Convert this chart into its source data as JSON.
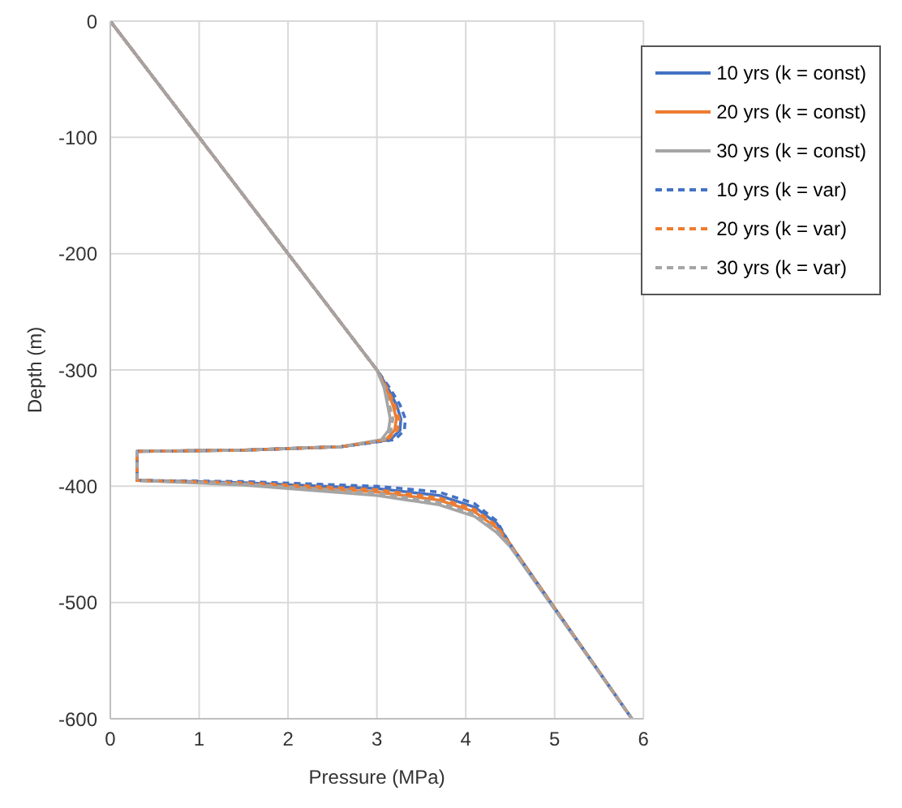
{
  "chart_data": {
    "type": "line",
    "xlabel": "Pressure (MPa)",
    "ylabel": "Depth (m)",
    "xlim": [
      0,
      6
    ],
    "xticks": [
      0,
      1,
      2,
      3,
      4,
      5,
      6
    ],
    "ylim": [
      -600,
      0
    ],
    "yticks": [
      -600,
      -500,
      -400,
      -300,
      -200,
      -100,
      0
    ],
    "grid": true,
    "legend": "top right",
    "marker": "none",
    "series": [
      {
        "name": "10 yrs (k = const)",
        "color": "#4472c4",
        "line_style": "solid",
        "x": [
          0,
          3.0,
          3.12,
          3.22,
          3.27,
          3.26,
          3.15,
          2.6,
          1.5,
          0.3,
          0.3,
          1.5,
          3.0,
          3.7,
          4.1,
          4.35,
          4.5,
          5.87
        ],
        "values": [
          0,
          -300,
          -315,
          -330,
          -342,
          -352,
          -360,
          -366,
          -369,
          -370,
          -395,
          -397,
          -402,
          -408,
          -418,
          -432,
          -450,
          -600
        ]
      },
      {
        "name": "20 yrs (k = const)",
        "color": "#ed7d31",
        "line_style": "solid",
        "x": [
          0,
          3.0,
          3.1,
          3.18,
          3.22,
          3.2,
          3.1,
          2.6,
          1.5,
          0.3,
          0.3,
          1.5,
          3.0,
          3.7,
          4.1,
          4.35,
          4.5,
          5.87
        ],
        "values": [
          0,
          -300,
          -315,
          -330,
          -342,
          -352,
          -360,
          -366,
          -369,
          -370,
          -395,
          -398,
          -405,
          -412,
          -422,
          -436,
          -450,
          -600
        ]
      },
      {
        "name": "30 yrs (k = const)",
        "color": "#a5a5a5",
        "line_style": "solid",
        "x": [
          0,
          3.0,
          3.08,
          3.12,
          3.15,
          3.13,
          3.05,
          2.6,
          1.5,
          0.3,
          0.3,
          1.5,
          3.0,
          3.7,
          4.1,
          4.35,
          4.5,
          5.87
        ],
        "values": [
          0,
          -300,
          -315,
          -330,
          -342,
          -352,
          -360,
          -366,
          -369,
          -370,
          -395,
          -399,
          -408,
          -416,
          -426,
          -440,
          -452,
          -600
        ]
      },
      {
        "name": "10 yrs (k = var)",
        "color": "#4472c4",
        "line_style": "dashed",
        "x": [
          0,
          3.0,
          3.14,
          3.26,
          3.32,
          3.31,
          3.2,
          2.6,
          1.5,
          0.3,
          0.3,
          1.5,
          3.0,
          3.7,
          4.1,
          4.35,
          4.5,
          5.87
        ],
        "values": [
          0,
          -300,
          -315,
          -330,
          -342,
          -352,
          -360,
          -366,
          -369,
          -370,
          -395,
          -396,
          -400,
          -405,
          -415,
          -430,
          -450,
          -600
        ]
      },
      {
        "name": "20 yrs (k = var)",
        "color": "#ed7d31",
        "line_style": "dashed",
        "x": [
          0,
          3.0,
          3.11,
          3.2,
          3.25,
          3.23,
          3.12,
          2.6,
          1.5,
          0.3,
          0.3,
          1.5,
          3.0,
          3.7,
          4.1,
          4.35,
          4.5,
          5.87
        ],
        "values": [
          0,
          -300,
          -315,
          -330,
          -342,
          -352,
          -360,
          -366,
          -369,
          -370,
          -395,
          -397,
          -403,
          -410,
          -420,
          -434,
          -450,
          -600
        ]
      },
      {
        "name": "30 yrs (k = var)",
        "color": "#a5a5a5",
        "line_style": "dashed",
        "x": [
          0,
          3.0,
          3.09,
          3.14,
          3.18,
          3.16,
          3.08,
          2.6,
          1.5,
          0.3,
          0.3,
          1.5,
          3.0,
          3.7,
          4.1,
          4.35,
          4.5,
          5.87
        ],
        "values": [
          0,
          -300,
          -315,
          -330,
          -342,
          -352,
          -360,
          -366,
          -369,
          -370,
          -395,
          -398,
          -406,
          -414,
          -424,
          -438,
          -451,
          -600
        ]
      }
    ]
  }
}
